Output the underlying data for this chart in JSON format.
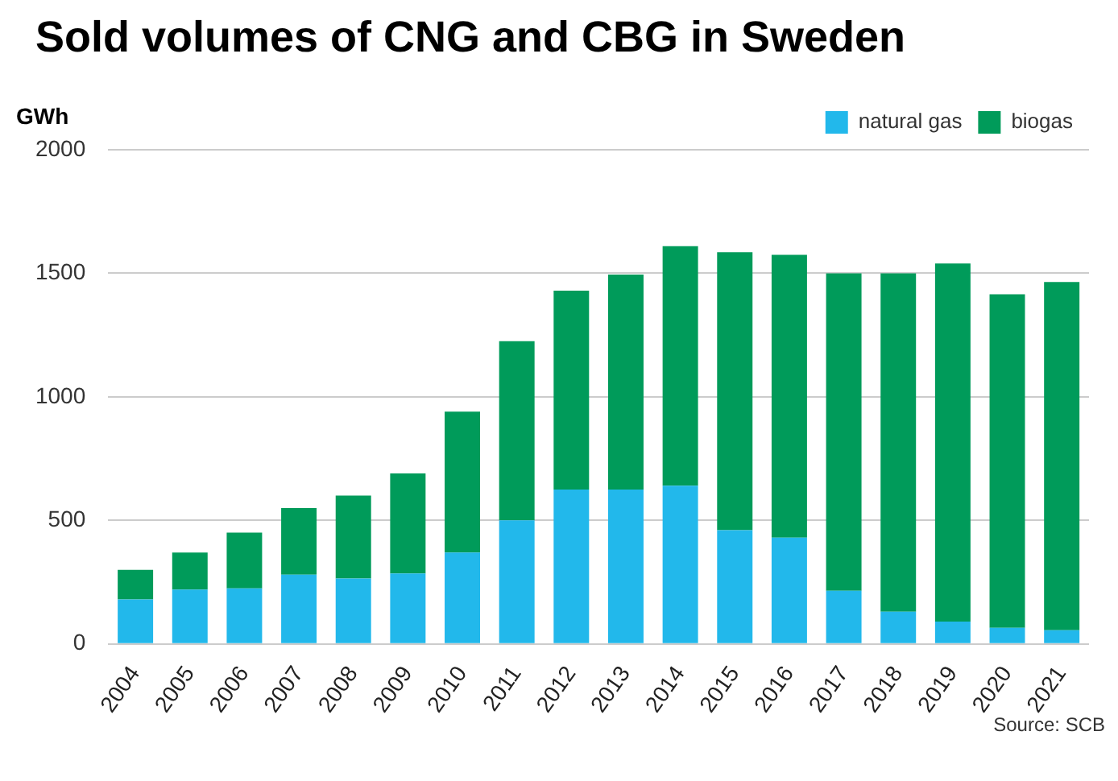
{
  "chart_data": {
    "type": "bar",
    "title": "Sold volumes of CNG and CBG in Sweden",
    "ylabel": "GWh",
    "stacked": true,
    "categories": [
      "2004",
      "2005",
      "2006",
      "2007",
      "2008",
      "2009",
      "2010",
      "2011",
      "2012",
      "2013",
      "2014",
      "2015",
      "2016",
      "2017",
      "2018",
      "2019",
      "2020",
      "2021"
    ],
    "series": [
      {
        "name": "natural gas",
        "color": "#22b8eb",
        "values": [
          180,
          220,
          225,
          280,
          265,
          285,
          370,
          500,
          625,
          625,
          640,
          460,
          430,
          215,
          130,
          90,
          65,
          55
        ]
      },
      {
        "name": "biogas",
        "color": "#009b5a",
        "values": [
          120,
          150,
          225,
          270,
          335,
          405,
          570,
          725,
          805,
          870,
          970,
          1125,
          1145,
          1285,
          1370,
          1450,
          1350,
          1410
        ]
      }
    ],
    "ylim": [
      0,
      2000
    ],
    "yticks": [
      0,
      500,
      1000,
      1500,
      2000
    ],
    "grid": "y",
    "legend": "top right",
    "annotations": [
      "Source: SCB"
    ]
  }
}
